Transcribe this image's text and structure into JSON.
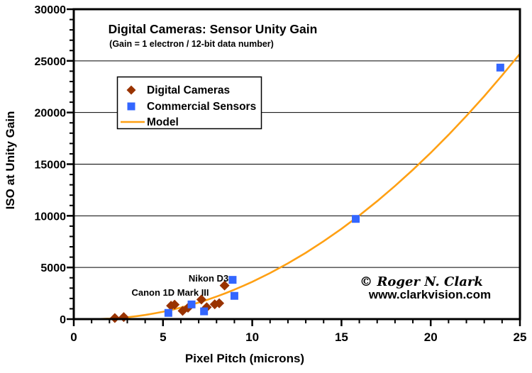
{
  "title": "Digital Cameras: Sensor Unity Gain",
  "subtitle": "(Gain = 1 electron / 12-bit data number)",
  "legend": {
    "digital_cameras": "Digital Cameras",
    "commercial_sensors": "Commercial Sensors",
    "model": "Model"
  },
  "signature": "© Roger N. Clark",
  "website": "www.clarkvision.com",
  "colors": {
    "digital_cameras": "#993300",
    "commercial_sensors": "#3366FF",
    "model": "#FFA013",
    "annotation": "#993300",
    "website_orange": "#FF9933",
    "axis": "#000000",
    "background": "#FFFFFF"
  },
  "chart_data": {
    "type": "scatter",
    "title": "Digital Cameras: Sensor Unity Gain",
    "subtitle": "(Gain = 1 electron / 12-bit data number)",
    "xlabel": "Pixel Pitch (microns)",
    "ylabel": "ISO at Unity Gain",
    "xlim": [
      0,
      25
    ],
    "ylim": [
      0,
      30000
    ],
    "x_major_ticks": [
      0,
      5,
      10,
      15,
      20,
      25
    ],
    "x_minor_step": 1,
    "y_major_ticks": [
      0,
      5000,
      10000,
      15000,
      20000,
      25000,
      30000
    ],
    "y_minor_step": 1000,
    "grid": "horizontal-major-only",
    "legend_position": "upper-left-inside",
    "series": [
      {
        "name": "Digital Cameras",
        "type": "scatter",
        "marker": "diamond",
        "color": "#993300",
        "points": [
          [
            2.3,
            100
          ],
          [
            2.8,
            200
          ],
          [
            5.45,
            1300
          ],
          [
            5.65,
            1400
          ],
          [
            6.1,
            800
          ],
          [
            6.4,
            1100
          ],
          [
            7.15,
            1900
          ],
          [
            7.45,
            1150
          ],
          [
            7.9,
            1430
          ],
          [
            8.15,
            1540
          ],
          [
            8.45,
            3250
          ]
        ]
      },
      {
        "name": "Commercial Sensors",
        "type": "scatter",
        "marker": "square",
        "color": "#3366FF",
        "points": [
          [
            5.3,
            600
          ],
          [
            6.6,
            1420
          ],
          [
            7.3,
            750
          ],
          [
            8.9,
            3800
          ],
          [
            9.0,
            2250
          ],
          [
            15.8,
            9700
          ],
          [
            23.9,
            24350
          ]
        ]
      },
      {
        "name": "Model",
        "type": "line",
        "color": "#FFA013",
        "points": [
          [
            1.15,
            1
          ],
          [
            1.5,
            11
          ],
          [
            2,
            45
          ],
          [
            2.5,
            100
          ],
          [
            3,
            178
          ],
          [
            3.5,
            279
          ],
          [
            4,
            401
          ],
          [
            4.5,
            546
          ],
          [
            5,
            714
          ],
          [
            5.5,
            903
          ],
          [
            6,
            1115
          ],
          [
            6.5,
            1349
          ],
          [
            7,
            1606
          ],
          [
            7.5,
            1884
          ],
          [
            8,
            2185
          ],
          [
            8.5,
            2508
          ],
          [
            9,
            2854
          ],
          [
            9.5,
            3221
          ],
          [
            10,
            3613
          ],
          [
            11,
            4460
          ],
          [
            12,
            5397
          ],
          [
            13,
            6422
          ],
          [
            14,
            7538
          ],
          [
            15,
            8742
          ],
          [
            16,
            10035
          ],
          [
            17,
            11418
          ],
          [
            18,
            12890
          ],
          [
            19,
            14450
          ],
          [
            20,
            16101
          ],
          [
            21,
            17840
          ],
          [
            22,
            19669
          ],
          [
            23,
            21586
          ],
          [
            24,
            23594
          ],
          [
            25,
            25690
          ]
        ]
      }
    ],
    "annotations": [
      {
        "text": "Canon 1D Mark III",
        "refers_to_point": [
          7.15,
          1900
        ]
      },
      {
        "text": "Nikon D3",
        "refers_to_point": [
          8.45,
          3250
        ]
      }
    ]
  }
}
